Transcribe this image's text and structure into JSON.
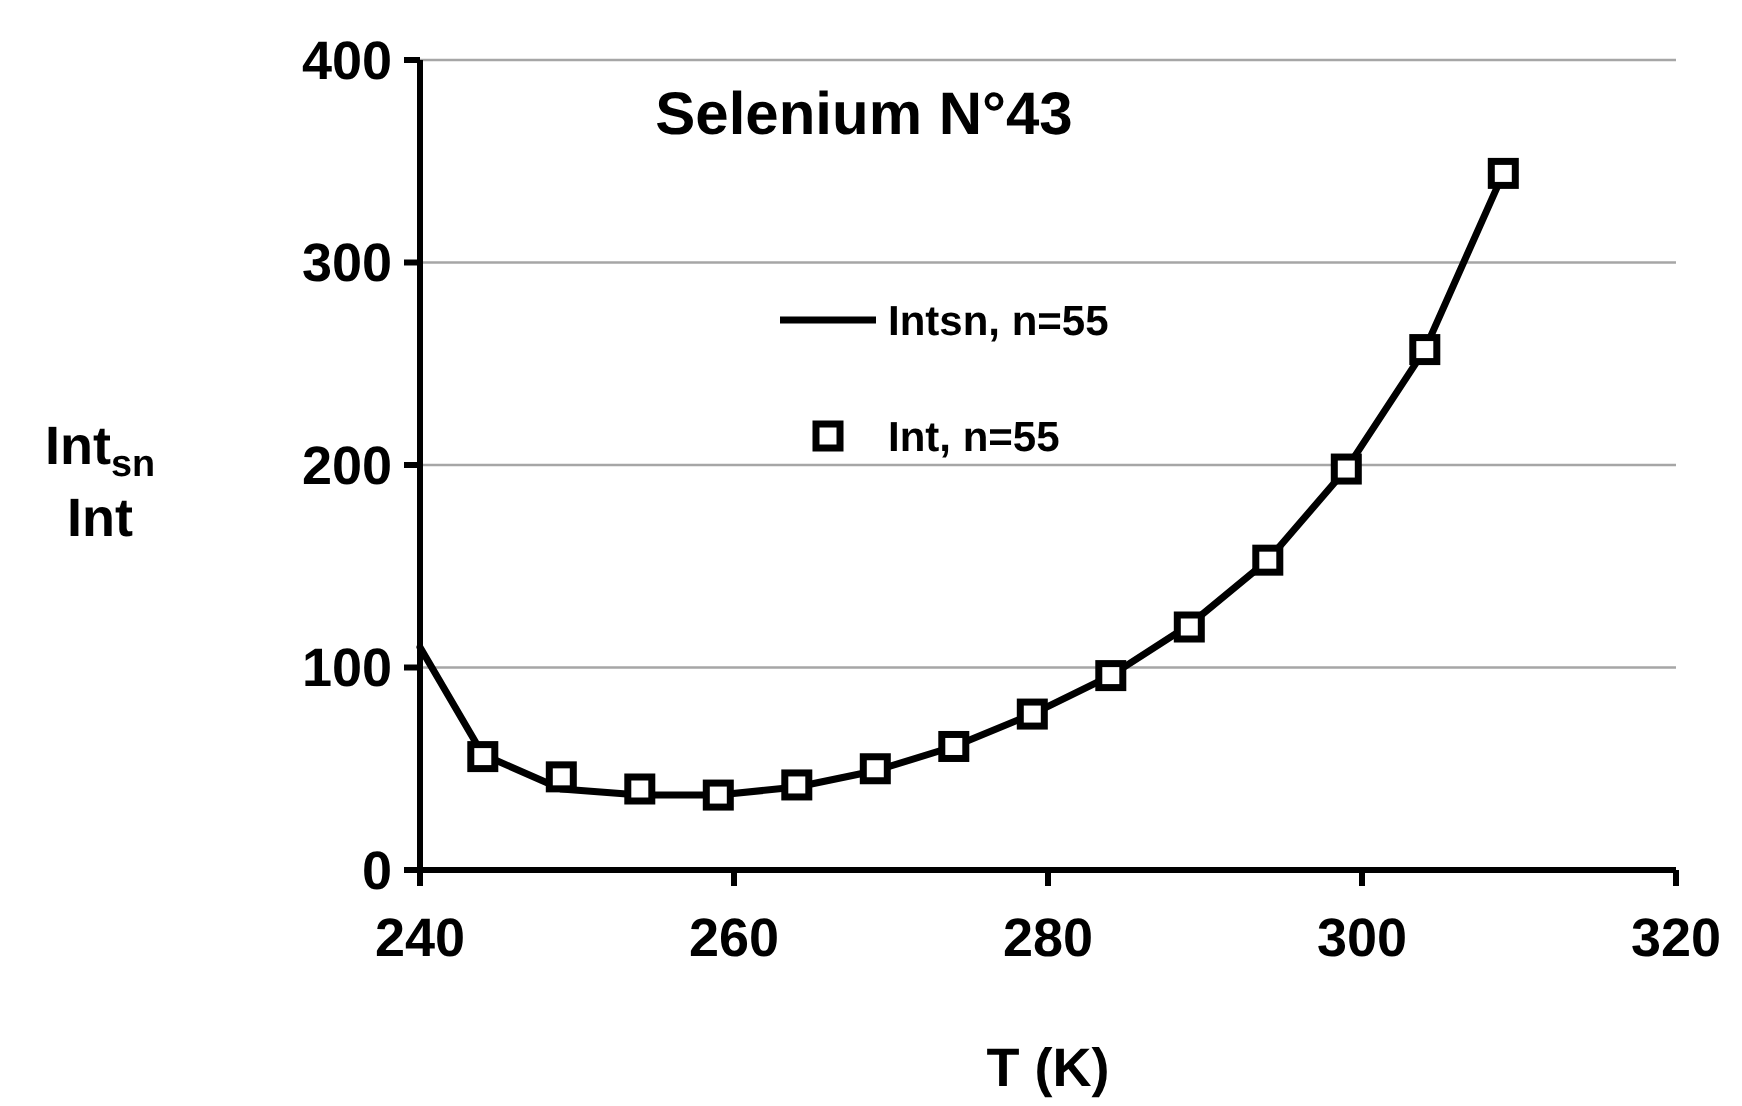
{
  "chart_data": {
    "type": "line",
    "title": "Selenium N°43",
    "xlabel": "T (K)",
    "ylabel": "Int$_{sn}$\nInt",
    "xlim": [
      240,
      320
    ],
    "xticks": [
      240,
      260,
      280,
      300,
      320
    ],
    "ylim": [
      0,
      400
    ],
    "yticks": [
      0,
      100,
      200,
      300,
      400
    ],
    "grid": "y",
    "legend": "top",
    "series": [
      {
        "name": "Intsn, n=55",
        "color": "#000000",
        "marker": "none",
        "line_style": "solid",
        "x": [
          240,
          244,
          249,
          254,
          259,
          264,
          269,
          274,
          279,
          284,
          289,
          294,
          299,
          304,
          309
        ],
        "values": [
          110,
          57,
          40,
          37,
          37,
          41,
          49,
          61,
          77,
          96,
          121,
          153,
          198,
          257,
          344
        ]
      },
      {
        "name": "Int, n=55",
        "type": "scatter",
        "color": "#000000",
        "marker": "square",
        "x": [
          244,
          249,
          254,
          259,
          264,
          269,
          274,
          279,
          284,
          289,
          294,
          299,
          304,
          309
        ],
        "values": [
          56,
          46,
          40,
          37,
          42,
          50,
          61,
          77,
          96,
          120,
          153,
          198,
          257,
          344
        ]
      }
    ]
  }
}
